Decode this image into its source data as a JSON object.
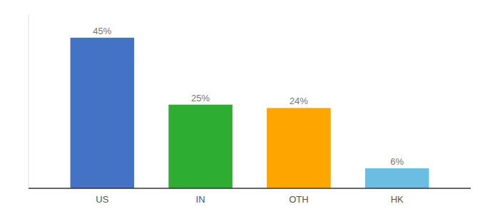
{
  "chart_data": {
    "type": "bar",
    "categories": [
      "US",
      "IN",
      "OTH",
      "HK"
    ],
    "values": [
      45,
      25,
      24,
      6
    ],
    "value_labels": [
      "45%",
      "25%",
      "24%",
      "6%"
    ],
    "colors": [
      "#4472C4",
      "#2EAD33",
      "#FFA500",
      "#6BBDE3"
    ],
    "ylim": [
      0,
      52
    ],
    "grid": false,
    "data_labels": true,
    "tick_labels": "x"
  }
}
